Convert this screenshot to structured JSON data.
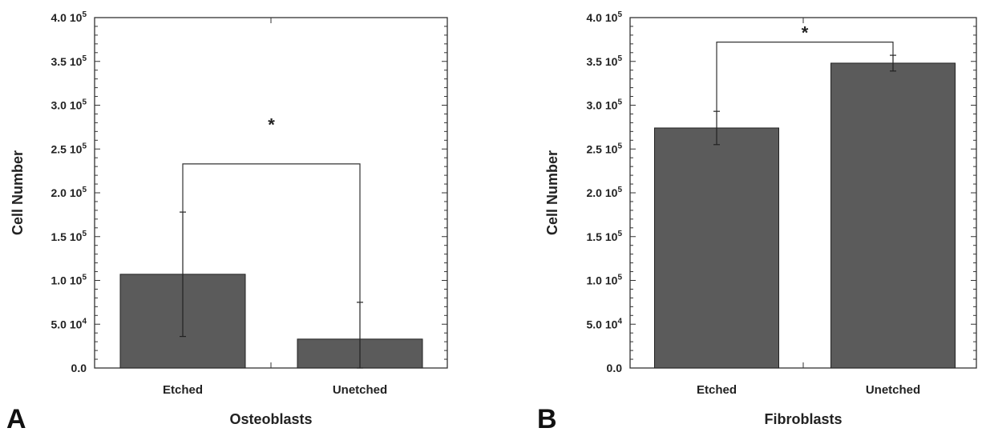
{
  "chart_data": [
    {
      "type": "bar",
      "panel": "A",
      "xlabel": "Osteoblasts",
      "ylabel": "Cell Number",
      "categories": [
        "Etched",
        "Unetched"
      ],
      "values": [
        107000,
        33000
      ],
      "error": [
        71000,
        42000
      ],
      "ylim": [
        0,
        400000
      ],
      "ytick_labels": [
        {
          "value": 0,
          "mantissa": "0.0",
          "exp": ""
        },
        {
          "value": 50000,
          "mantissa": "5.0 10",
          "exp": "4"
        },
        {
          "value": 100000,
          "mantissa": "1.0 10",
          "exp": "5"
        },
        {
          "value": 150000,
          "mantissa": "1.5 10",
          "exp": "5"
        },
        {
          "value": 200000,
          "mantissa": "2.0 10",
          "exp": "5"
        },
        {
          "value": 250000,
          "mantissa": "2.5 10",
          "exp": "5"
        },
        {
          "value": 300000,
          "mantissa": "3.0 10",
          "exp": "5"
        },
        {
          "value": 350000,
          "mantissa": "3.5 10",
          "exp": "5"
        },
        {
          "value": 400000,
          "mantissa": "4.0 10",
          "exp": "5"
        }
      ],
      "significance": {
        "bracket_y": 233000,
        "star_y": 278000,
        "label": "*"
      },
      "bar_color": "#5b5b5b",
      "grid": false
    },
    {
      "type": "bar",
      "panel": "B",
      "xlabel": "Fibroblasts",
      "ylabel": "Cell Number",
      "categories": [
        "Etched",
        "Unetched"
      ],
      "values": [
        274000,
        348000
      ],
      "error": [
        19000,
        9000
      ],
      "ylim": [
        0,
        400000
      ],
      "ytick_labels": [
        {
          "value": 0,
          "mantissa": "0.0",
          "exp": ""
        },
        {
          "value": 50000,
          "mantissa": "5.0 10",
          "exp": "4"
        },
        {
          "value": 100000,
          "mantissa": "1.0 10",
          "exp": "5"
        },
        {
          "value": 150000,
          "mantissa": "1.5 10",
          "exp": "5"
        },
        {
          "value": 200000,
          "mantissa": "2.0 10",
          "exp": "5"
        },
        {
          "value": 250000,
          "mantissa": "2.5 10",
          "exp": "5"
        },
        {
          "value": 300000,
          "mantissa": "3.0 10",
          "exp": "5"
        },
        {
          "value": 350000,
          "mantissa": "3.5 10",
          "exp": "5"
        },
        {
          "value": 400000,
          "mantissa": "4.0 10",
          "exp": "5"
        }
      ],
      "significance": {
        "bracket_y": 372000,
        "star_y": 383000,
        "label": "*"
      },
      "bar_color": "#5b5b5b",
      "grid": false
    }
  ]
}
